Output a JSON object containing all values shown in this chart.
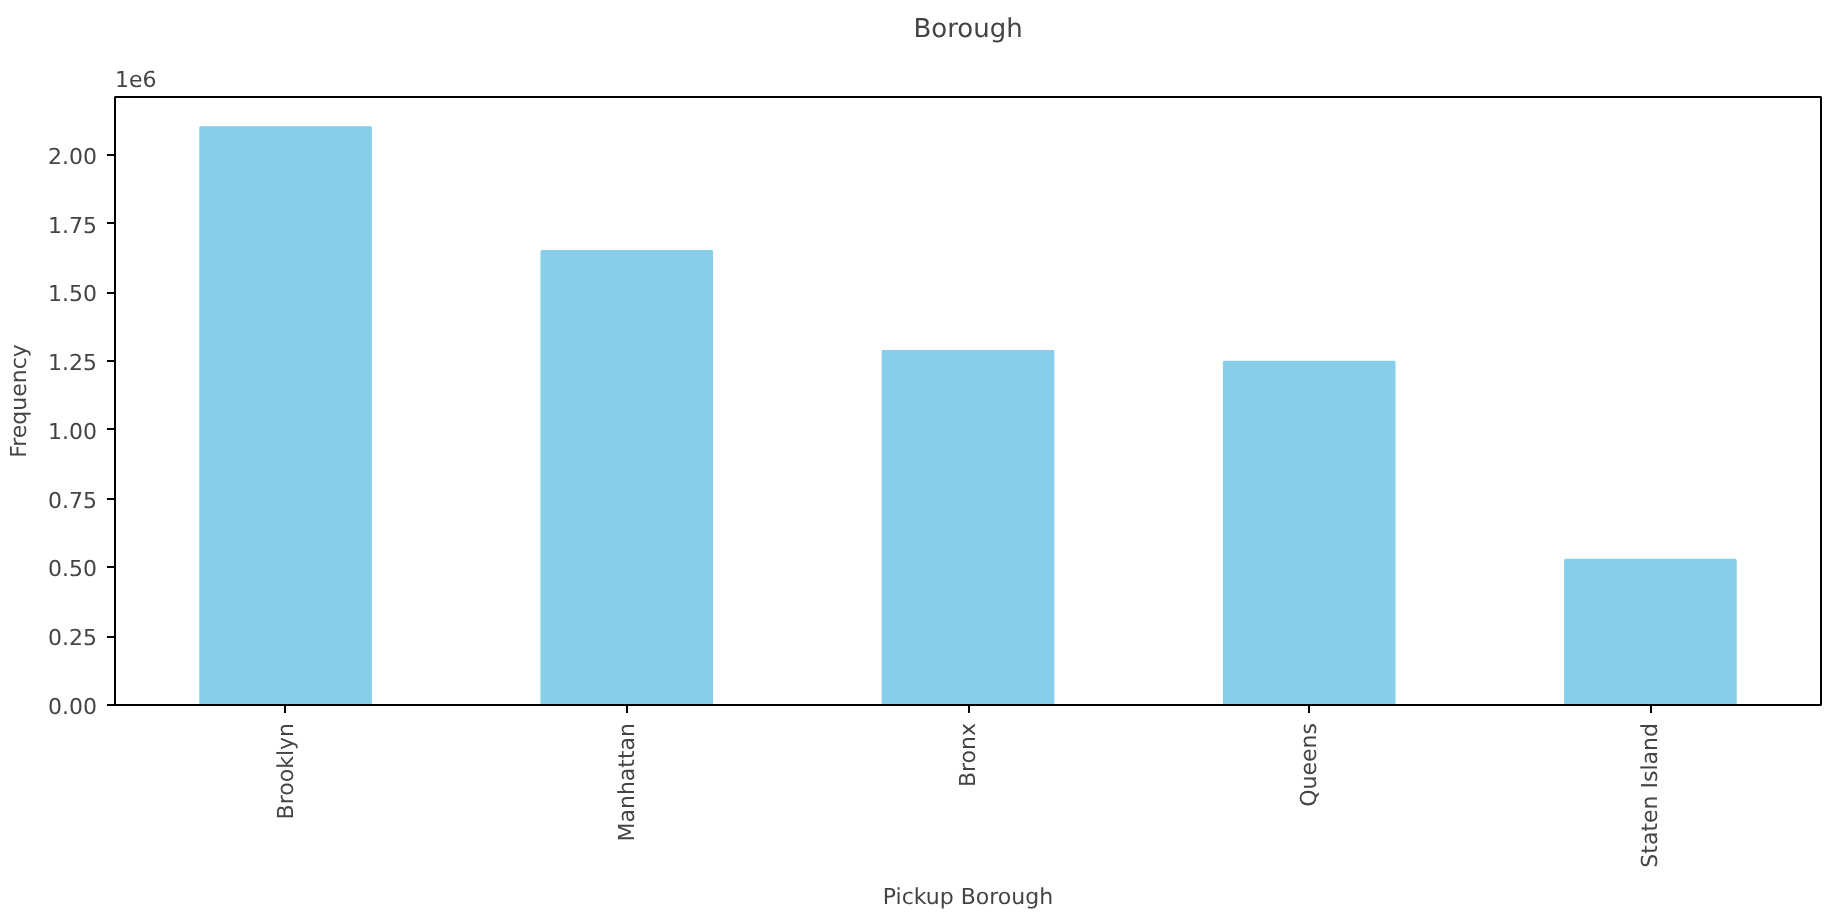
{
  "chart_data": {
    "type": "bar",
    "title": "Borough",
    "xlabel": "Pickup Borough",
    "ylabel": "Frequency",
    "categories": [
      "Brooklyn",
      "Manhattan",
      "Bronx",
      "Queens",
      "Staten Island"
    ],
    "values": [
      2.1,
      1.65,
      1.287,
      1.248,
      0.528
    ],
    "color": "#87ceeb",
    "ylim": [
      0,
      2.21
    ],
    "yticks": [
      {
        "value": 0,
        "label": "0.00"
      },
      {
        "value": 0.25,
        "label": "0.25"
      },
      {
        "value": 0.5,
        "label": "0.50"
      },
      {
        "value": 0.75,
        "label": "0.75"
      },
      {
        "value": 1,
        "label": "1.00"
      },
      {
        "value": 1.25,
        "label": "1.25"
      },
      {
        "value": 1.5,
        "label": "1.50"
      },
      {
        "value": 1.75,
        "label": "1.75"
      },
      {
        "value": 2,
        "label": "2.00"
      }
    ],
    "annotations": [
      "1e6"
    ],
    "grid": false
  }
}
